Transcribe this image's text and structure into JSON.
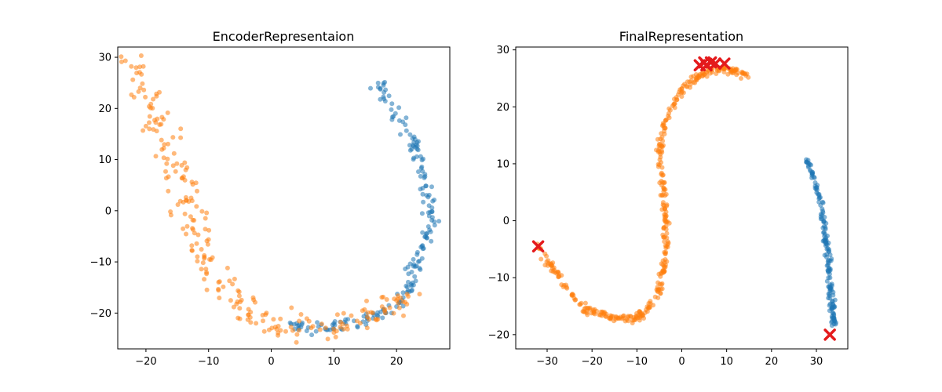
{
  "chart_data": [
    {
      "type": "scatter",
      "title": "EncoderRepresentaion",
      "xlim": [
        -24.5,
        28.5
      ],
      "ylim": [
        -27,
        32
      ],
      "xticks": [
        -20,
        -10,
        0,
        10,
        20
      ],
      "yticks": [
        -20,
        -10,
        0,
        10,
        20,
        30
      ],
      "grid": false,
      "colors": [
        "#1f77b4",
        "#ff7f0e"
      ],
      "series": [
        {
          "path": [
            [
              16.5,
              25.5
            ],
            [
              17.5,
              24
            ],
            [
              19,
              21
            ],
            [
              20.5,
              18
            ],
            [
              22,
              15
            ],
            [
              23,
              12
            ],
            [
              24,
              8.5
            ],
            [
              24.5,
              5
            ],
            [
              25.2,
              2
            ],
            [
              25.5,
              -1
            ],
            [
              25.3,
              -4
            ],
            [
              24.5,
              -7
            ],
            [
              23.5,
              -10
            ],
            [
              22.5,
              -14
            ],
            [
              21,
              -17
            ],
            [
              18.5,
              -19.5
            ],
            [
              15,
              -21.5
            ],
            [
              11,
              -22.5
            ],
            [
              7,
              -23
            ],
            [
              3,
              -22.5
            ]
          ],
          "n": 200,
          "jitter": 0.6
        },
        {
          "path": [
            [
              -22,
              29
            ],
            [
              -21.2,
              26
            ],
            [
              -20,
              22
            ],
            [
              -18.5,
              18.5
            ],
            [
              -17.5,
              15
            ],
            [
              -16.5,
              12
            ],
            [
              -15.5,
              9
            ],
            [
              -14.5,
              7
            ],
            [
              -13.5,
              4
            ],
            [
              -13,
              0
            ],
            [
              -12.5,
              -3
            ],
            [
              -11.5,
              -7
            ],
            [
              -10,
              -11
            ],
            [
              -8,
              -13.5
            ],
            [
              -6,
              -16
            ],
            [
              -4,
              -19
            ],
            [
              -2,
              -21.5
            ],
            [
              1,
              -22.5
            ],
            [
              4,
              -23
            ],
            [
              7,
              -23.5
            ],
            [
              10,
              -22.5
            ],
            [
              13,
              -21.5
            ],
            [
              16,
              -20.5
            ],
            [
              19,
              -19
            ],
            [
              22,
              -16
            ]
          ],
          "n": 240,
          "jitter": 1.2
        }
      ],
      "markers": []
    },
    {
      "type": "scatter",
      "title": "FinalRepresentation",
      "xlim": [
        -37,
        37
      ],
      "ylim": [
        -22.5,
        30.5
      ],
      "xticks": [
        -30,
        -20,
        -10,
        0,
        10,
        20,
        30
      ],
      "yticks": [
        -20,
        -10,
        0,
        10,
        20,
        30
      ],
      "grid": false,
      "colors": [
        "#1f77b4",
        "#ff7f0e"
      ],
      "series": [
        {
          "path": [
            [
              27.5,
              11
            ],
            [
              29.5,
              7.5
            ],
            [
              30.5,
              4.5
            ],
            [
              31.5,
              0.5
            ],
            [
              32,
              -3
            ],
            [
              32.5,
              -6
            ],
            [
              33,
              -9
            ],
            [
              33.2,
              -12
            ],
            [
              33.5,
              -15
            ],
            [
              33.8,
              -18.5
            ]
          ],
          "n": 160,
          "jitter": 0.3
        },
        {
          "path": [
            [
              -32,
              -4.5
            ],
            [
              -30,
              -6.5
            ],
            [
              -28,
              -9
            ],
            [
              -26,
              -11.5
            ],
            [
              -24,
              -13.5
            ],
            [
              -21.5,
              -15.5
            ],
            [
              -18.5,
              -16.5
            ],
            [
              -15,
              -17.2
            ],
            [
              -12,
              -17.3
            ],
            [
              -9,
              -16.5
            ],
            [
              -7,
              -15
            ],
            [
              -5,
              -12
            ],
            [
              -4,
              -8
            ],
            [
              -3.5,
              -4
            ],
            [
              -3.5,
              0
            ],
            [
              -4,
              4
            ],
            [
              -4.5,
              8
            ],
            [
              -5,
              11
            ],
            [
              -4.5,
              15
            ],
            [
              -3.5,
              18
            ],
            [
              -2,
              20.5
            ],
            [
              0,
              23
            ],
            [
              3,
              25
            ],
            [
              6,
              26.3
            ],
            [
              9,
              26.8
            ],
            [
              12,
              26.2
            ],
            [
              14.5,
              25.5
            ]
          ],
          "n": 400,
          "jitter": 0.35
        }
      ],
      "markers": [
        [
          -32,
          -4.5
        ],
        [
          4,
          27.3
        ],
        [
          5,
          27.8
        ],
        [
          5.5,
          27.3
        ],
        [
          6.5,
          27.8
        ],
        [
          7.5,
          27.6
        ],
        [
          9.5,
          27.6
        ],
        [
          33,
          -20
        ]
      ]
    }
  ]
}
